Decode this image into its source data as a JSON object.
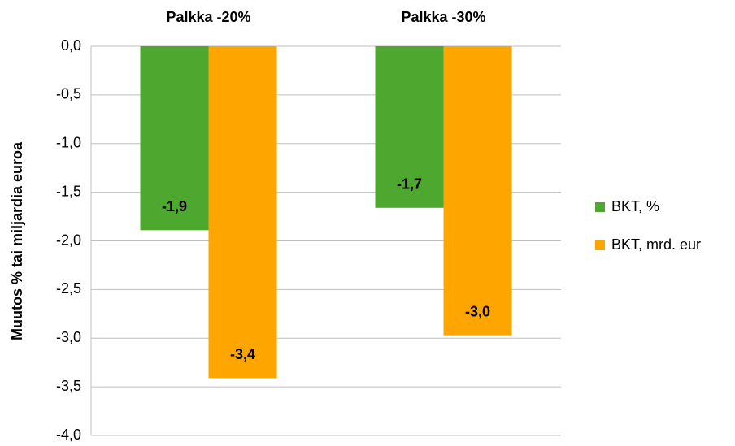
{
  "chart_data": {
    "type": "bar",
    "categories": [
      "Palkka -20%",
      "Palkka -30%"
    ],
    "y_label": "Muutos % tai miljardia euroa",
    "series": [
      {
        "name": "BKT, %",
        "color": "#4ea72e",
        "values": [
          -1.89,
          -1.66
        ],
        "value_labels": [
          "-1,9",
          "-1,7"
        ]
      },
      {
        "name": "BKT, mrd. eur",
        "color": "#ffa500",
        "values": [
          -3.41,
          -2.97
        ],
        "value_labels": [
          "-3,4",
          "-3,0"
        ]
      }
    ],
    "ylim": [
      -4,
      0
    ],
    "yticks": [
      {
        "value": 0,
        "label": "0,0"
      },
      {
        "value": -0.5,
        "label": "-0,5"
      },
      {
        "value": -1,
        "label": "-1,0"
      },
      {
        "value": -1.5,
        "label": "-1,5"
      },
      {
        "value": -2,
        "label": "-2,0"
      },
      {
        "value": -2.5,
        "label": "-2,5"
      },
      {
        "value": -3,
        "label": "-3,0"
      },
      {
        "value": -3.5,
        "label": "-3,5"
      },
      {
        "value": -4,
        "label": "-4,0"
      }
    ],
    "grid": true,
    "legend": "right"
  }
}
